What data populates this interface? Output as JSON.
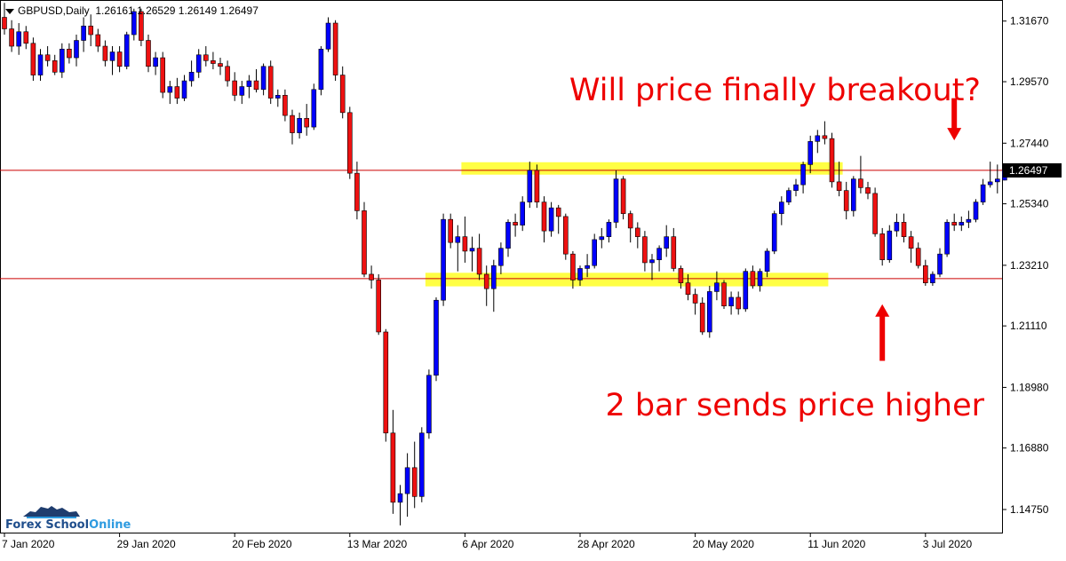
{
  "header": {
    "symbol": "GBPUSD,Daily",
    "ohlc": "1.26161 1.26529 1.26149 1.26497"
  },
  "annotations": {
    "top": "Will price finally breakout?",
    "bottom": "2 bar sends price higher"
  },
  "logo": {
    "part1": "Forex School",
    "part2": "Online"
  },
  "colors": {
    "bull": "#0000ff",
    "bear": "#ee1111",
    "zone": "#ffff44",
    "level_line": "#cc0000",
    "annotation": "#ee0000"
  },
  "chart_data": {
    "type": "candlestick",
    "symbol": "GBPUSD",
    "timeframe": "Daily",
    "y_ticks": [
      "1.31670",
      "1.29570",
      "1.27440",
      "1.25340",
      "1.23210",
      "1.21110",
      "1.18980",
      "1.16880",
      "1.14750"
    ],
    "ylim": [
      1.1395,
      1.324
    ],
    "x_ticks": [
      "7 Jan 2020",
      "29 Jan 2020",
      "20 Feb 2020",
      "13 Mar 2020",
      "6 Apr 2020",
      "28 Apr 2020",
      "20 May 2020",
      "11 Jun 2020",
      "3 Jul 2020"
    ],
    "x_tick_index": [
      0,
      16,
      32,
      48,
      64,
      80,
      96,
      112,
      128
    ],
    "current_price": "1.26497",
    "horizontal_lines": [
      1.265,
      1.2275
    ],
    "zones": [
      {
        "from_index": 64,
        "to_index": 116,
        "low": 1.2635,
        "high": 1.2678
      },
      {
        "from_index": 59,
        "to_index": 114,
        "low": 1.2248,
        "high": 1.2295
      }
    ],
    "arrows": [
      {
        "index": 132,
        "direction": "down",
        "from": 1.29,
        "to": 1.276
      },
      {
        "index": 122,
        "direction": "up",
        "from": 1.199,
        "to": 1.218
      }
    ],
    "candles": [
      [
        1.318,
        1.323,
        1.312,
        1.314
      ],
      [
        1.314,
        1.317,
        1.306,
        1.308
      ],
      [
        1.308,
        1.316,
        1.305,
        1.313
      ],
      [
        1.313,
        1.315,
        1.307,
        1.309
      ],
      [
        1.309,
        1.311,
        1.296,
        1.298
      ],
      [
        1.298,
        1.307,
        1.296,
        1.305
      ],
      [
        1.305,
        1.308,
        1.301,
        1.303
      ],
      [
        1.303,
        1.305,
        1.298,
        1.299
      ],
      [
        1.299,
        1.309,
        1.297,
        1.307
      ],
      [
        1.307,
        1.309,
        1.302,
        1.304
      ],
      [
        1.304,
        1.312,
        1.301,
        1.31
      ],
      [
        1.31,
        1.318,
        1.306,
        1.315
      ],
      [
        1.315,
        1.319,
        1.308,
        1.312
      ],
      [
        1.312,
        1.314,
        1.306,
        1.308
      ],
      [
        1.308,
        1.31,
        1.301,
        1.303
      ],
      [
        1.303,
        1.308,
        1.298,
        1.306
      ],
      [
        1.306,
        1.308,
        1.299,
        1.301
      ],
      [
        1.301,
        1.313,
        1.3,
        1.312
      ],
      [
        1.312,
        1.321,
        1.31,
        1.32
      ],
      [
        1.32,
        1.321,
        1.308,
        1.31
      ],
      [
        1.31,
        1.312,
        1.299,
        1.301
      ],
      [
        1.301,
        1.306,
        1.298,
        1.304
      ],
      [
        1.304,
        1.306,
        1.29,
        1.292
      ],
      [
        1.292,
        1.296,
        1.288,
        1.294
      ],
      [
        1.294,
        1.297,
        1.288,
        1.29
      ],
      [
        1.29,
        1.298,
        1.289,
        1.296
      ],
      [
        1.296,
        1.303,
        1.294,
        1.299
      ],
      [
        1.299,
        1.307,
        1.297,
        1.305
      ],
      [
        1.305,
        1.308,
        1.301,
        1.303
      ],
      [
        1.303,
        1.306,
        1.3,
        1.302
      ],
      [
        1.302,
        1.304,
        1.298,
        1.301
      ],
      [
        1.301,
        1.303,
        1.294,
        1.296
      ],
      [
        1.296,
        1.299,
        1.289,
        1.291
      ],
      [
        1.291,
        1.296,
        1.288,
        1.294
      ],
      [
        1.294,
        1.298,
        1.29,
        1.296
      ],
      [
        1.296,
        1.3,
        1.292,
        1.293
      ],
      [
        1.293,
        1.302,
        1.291,
        1.301
      ],
      [
        1.301,
        1.303,
        1.288,
        1.29
      ],
      [
        1.29,
        1.293,
        1.287,
        1.291
      ],
      [
        1.291,
        1.293,
        1.282,
        1.284
      ],
      [
        1.284,
        1.286,
        1.274,
        1.278
      ],
      [
        1.278,
        1.285,
        1.276,
        1.283
      ],
      [
        1.283,
        1.288,
        1.277,
        1.28
      ],
      [
        1.28,
        1.295,
        1.279,
        1.293
      ],
      [
        1.293,
        1.308,
        1.291,
        1.307
      ],
      [
        1.307,
        1.318,
        1.306,
        1.316
      ],
      [
        1.316,
        1.317,
        1.296,
        1.298
      ],
      [
        1.298,
        1.301,
        1.283,
        1.285
      ],
      [
        1.285,
        1.287,
        1.262,
        1.264
      ],
      [
        1.264,
        1.268,
        1.248,
        1.251
      ],
      [
        1.251,
        1.254,
        1.228,
        1.229
      ],
      [
        1.229,
        1.232,
        1.224,
        1.227
      ],
      [
        1.227,
        1.229,
        1.208,
        1.209
      ],
      [
        1.209,
        1.21,
        1.171,
        1.174
      ],
      [
        1.174,
        1.182,
        1.146,
        1.15
      ],
      [
        1.15,
        1.156,
        1.142,
        1.153
      ],
      [
        1.153,
        1.167,
        1.145,
        1.162
      ],
      [
        1.162,
        1.171,
        1.148,
        1.152
      ],
      [
        1.152,
        1.176,
        1.15,
        1.174
      ],
      [
        1.174,
        1.196,
        1.172,
        1.194
      ],
      [
        1.194,
        1.221,
        1.192,
        1.22
      ],
      [
        1.22,
        1.25,
        1.218,
        1.248
      ],
      [
        1.248,
        1.25,
        1.238,
        1.24
      ],
      [
        1.24,
        1.246,
        1.23,
        1.242
      ],
      [
        1.242,
        1.249,
        1.233,
        1.237
      ],
      [
        1.237,
        1.242,
        1.23,
        1.238
      ],
      [
        1.238,
        1.243,
        1.227,
        1.229
      ],
      [
        1.229,
        1.232,
        1.218,
        1.224
      ],
      [
        1.224,
        1.234,
        1.216,
        1.232
      ],
      [
        1.232,
        1.24,
        1.229,
        1.238
      ],
      [
        1.238,
        1.248,
        1.235,
        1.247
      ],
      [
        1.247,
        1.25,
        1.242,
        1.246
      ],
      [
        1.246,
        1.256,
        1.244,
        1.254
      ],
      [
        1.254,
        1.268,
        1.252,
        1.265
      ],
      [
        1.265,
        1.267,
        1.252,
        1.254
      ],
      [
        1.254,
        1.256,
        1.24,
        1.244
      ],
      [
        1.244,
        1.254,
        1.242,
        1.252
      ],
      [
        1.252,
        1.253,
        1.243,
        1.249
      ],
      [
        1.249,
        1.25,
        1.234,
        1.236
      ],
      [
        1.236,
        1.237,
        1.224,
        1.227
      ],
      [
        1.227,
        1.232,
        1.225,
        1.231
      ],
      [
        1.231,
        1.236,
        1.228,
        1.232
      ],
      [
        1.232,
        1.243,
        1.231,
        1.241
      ],
      [
        1.241,
        1.245,
        1.238,
        1.242
      ],
      [
        1.242,
        1.248,
        1.24,
        1.247
      ],
      [
        1.247,
        1.265,
        1.245,
        1.262
      ],
      [
        1.262,
        1.263,
        1.248,
        1.25
      ],
      [
        1.25,
        1.251,
        1.24,
        1.245
      ],
      [
        1.245,
        1.247,
        1.238,
        1.242
      ],
      [
        1.242,
        1.244,
        1.23,
        1.233
      ],
      [
        1.233,
        1.236,
        1.227,
        1.234
      ],
      [
        1.234,
        1.239,
        1.23,
        1.238
      ],
      [
        1.238,
        1.246,
        1.235,
        1.242
      ],
      [
        1.242,
        1.245,
        1.23,
        1.231
      ],
      [
        1.231,
        1.232,
        1.224,
        1.226
      ],
      [
        1.226,
        1.229,
        1.22,
        1.222
      ],
      [
        1.222,
        1.224,
        1.215,
        1.219
      ],
      [
        1.219,
        1.221,
        1.208,
        1.209
      ],
      [
        1.209,
        1.225,
        1.207,
        1.223
      ],
      [
        1.223,
        1.23,
        1.22,
        1.226
      ],
      [
        1.226,
        1.227,
        1.217,
        1.218
      ],
      [
        1.218,
        1.223,
        1.215,
        1.221
      ],
      [
        1.221,
        1.223,
        1.215,
        1.217
      ],
      [
        1.217,
        1.231,
        1.216,
        1.23
      ],
      [
        1.23,
        1.232,
        1.224,
        1.225
      ],
      [
        1.225,
        1.231,
        1.223,
        1.23
      ],
      [
        1.23,
        1.238,
        1.228,
        1.237
      ],
      [
        1.237,
        1.251,
        1.236,
        1.25
      ],
      [
        1.25,
        1.256,
        1.246,
        1.254
      ],
      [
        1.254,
        1.259,
        1.253,
        1.258
      ],
      [
        1.258,
        1.262,
        1.256,
        1.26
      ],
      [
        1.26,
        1.268,
        1.257,
        1.267
      ],
      [
        1.267,
        1.277,
        1.264,
        1.275
      ],
      [
        1.275,
        1.279,
        1.271,
        1.277
      ],
      [
        1.277,
        1.282,
        1.274,
        1.276
      ],
      [
        1.276,
        1.278,
        1.259,
        1.261
      ],
      [
        1.261,
        1.268,
        1.256,
        1.258
      ],
      [
        1.258,
        1.261,
        1.248,
        1.251
      ],
      [
        1.251,
        1.263,
        1.249,
        1.262
      ],
      [
        1.262,
        1.27,
        1.257,
        1.259
      ],
      [
        1.259,
        1.261,
        1.255,
        1.257
      ],
      [
        1.257,
        1.259,
        1.242,
        1.243
      ],
      [
        1.243,
        1.245,
        1.232,
        1.234
      ],
      [
        1.234,
        1.246,
        1.233,
        1.244
      ],
      [
        1.244,
        1.25,
        1.242,
        1.247
      ],
      [
        1.247,
        1.25,
        1.24,
        1.242
      ],
      [
        1.242,
        1.244,
        1.233,
        1.238
      ],
      [
        1.238,
        1.24,
        1.231,
        1.232
      ],
      [
        1.232,
        1.234,
        1.225,
        1.226
      ],
      [
        1.226,
        1.23,
        1.225,
        1.229
      ],
      [
        1.229,
        1.238,
        1.228,
        1.236
      ],
      [
        1.236,
        1.248,
        1.235,
        1.247
      ],
      [
        1.247,
        1.25,
        1.244,
        1.246
      ],
      [
        1.246,
        1.249,
        1.244,
        1.247
      ],
      [
        1.247,
        1.251,
        1.245,
        1.248
      ],
      [
        1.248,
        1.255,
        1.247,
        1.254
      ],
      [
        1.254,
        1.262,
        1.253,
        1.26
      ],
      [
        1.26,
        1.268,
        1.259,
        1.261
      ],
      [
        1.261,
        1.267,
        1.257,
        1.262
      ],
      [
        1.2616,
        1.2653,
        1.2615,
        1.265
      ]
    ]
  }
}
